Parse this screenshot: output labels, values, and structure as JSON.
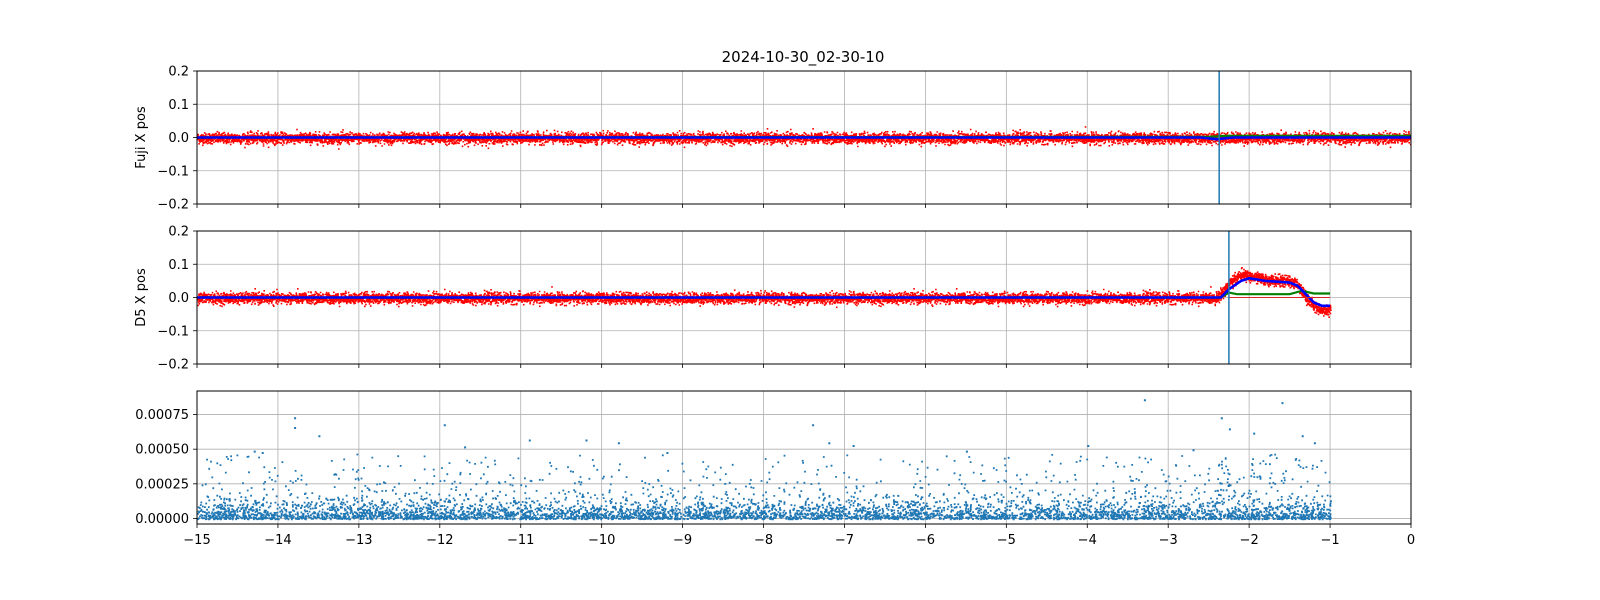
{
  "figure": {
    "title": "2024-10-30_02-30-10"
  },
  "colors": {
    "raw": "#ff0000",
    "smooth": "#0000ff",
    "baseline": "#008000",
    "marker": "#1f77b4",
    "scatter": "#1f77b4",
    "grid": "#b0b0b0"
  },
  "chart_data": [
    {
      "type": "scatter",
      "ylabel": "Fuji X pos",
      "xlim": [
        -15,
        0
      ],
      "ylim": [
        -0.2,
        0.2
      ],
      "yticks": [
        "0.2",
        "0.1",
        "0.0",
        "−0.1",
        "−0.2"
      ],
      "ytick_values": [
        0.2,
        0.1,
        0.0,
        -0.1,
        -0.2
      ],
      "grid": true,
      "raw": {
        "x_range": [
          -15,
          0
        ],
        "mean": 0.0,
        "noise": 0.008
      },
      "smooth": {
        "x": [
          -15,
          -2.6,
          -2.4,
          -2.2,
          0
        ],
        "y": [
          0.0,
          0.0,
          -0.005,
          0.0,
          0.0
        ]
      },
      "baseline": {
        "x": [
          -15,
          -2.5,
          -2.3,
          0
        ],
        "y": [
          0.0,
          0.002,
          0.005,
          0.005
        ]
      },
      "vline": -2.37
    },
    {
      "type": "scatter",
      "ylabel": "D5 X pos",
      "xlim": [
        -15,
        0
      ],
      "ylim": [
        -0.2,
        0.2
      ],
      "yticks": [
        "0.2",
        "0.1",
        "0.0",
        "−0.1",
        "−0.2"
      ],
      "ytick_values": [
        0.2,
        0.1,
        0.0,
        -0.1,
        -0.2
      ],
      "grid": true,
      "raw": {
        "x": [
          -15,
          -2.4,
          -2.25,
          -2.1,
          -2.0,
          -1.8,
          -1.5,
          -1.4,
          -1.3,
          -1.2,
          -1.1,
          -1.0
        ],
        "y": [
          0.0,
          0.0,
          0.045,
          0.07,
          0.065,
          0.055,
          0.05,
          0.04,
          0.0,
          -0.025,
          -0.035,
          -0.035
        ],
        "noise": 0.008
      },
      "smooth": {
        "x": [
          -15,
          -2.35,
          -2.25,
          -2.1,
          -2.0,
          -1.8,
          -1.5,
          -1.4,
          -1.3,
          -1.2,
          -1.1,
          -1.0
        ],
        "y": [
          0.0,
          0.0,
          0.025,
          0.05,
          0.058,
          0.05,
          0.045,
          0.035,
          0.01,
          -0.015,
          -0.025,
          -0.025
        ]
      },
      "baseline": {
        "x": [
          -15,
          -2.35,
          -2.25,
          -2.15,
          -1.5,
          -1.35,
          -1.2,
          -1.0
        ],
        "y": [
          0.0,
          0.0,
          0.015,
          0.01,
          0.01,
          0.02,
          0.012,
          0.012
        ]
      },
      "hline": {
        "x": [
          -2.25,
          -1.0
        ],
        "y": 0.0
      },
      "vline": -2.25
    },
    {
      "type": "scatter",
      "ylabel": "",
      "xlim": [
        -15,
        0
      ],
      "ylim": [
        -4e-05,
        0.00092
      ],
      "yticks": [
        "0.00075",
        "0.00050",
        "0.00025",
        "0.00000"
      ],
      "ytick_values": [
        0.00075,
        0.0005,
        0.00025,
        0.0
      ],
      "xticks": [
        "−15",
        "−14",
        "−13",
        "−12",
        "−11",
        "−10",
        "−9",
        "−8",
        "−7",
        "−6",
        "−5",
        "−4",
        "−3",
        "−2",
        "−1",
        "0"
      ],
      "xtick_values": [
        -15,
        -14,
        -13,
        -12,
        -11,
        -10,
        -9,
        -8,
        -7,
        -6,
        -5,
        -4,
        -3,
        -2,
        -1,
        0
      ],
      "grid": true,
      "x_range": [
        -15,
        -1
      ],
      "typical_max": 0.00025,
      "outliers": [
        [
          -13.8,
          0.00073
        ],
        [
          -13.8,
          0.00066
        ],
        [
          -13.5,
          0.0006
        ],
        [
          -11.95,
          0.00068
        ],
        [
          -11.7,
          0.00052
        ],
        [
          -10.9,
          0.00057
        ],
        [
          -10.2,
          0.00057
        ],
        [
          -9.8,
          0.00055
        ],
        [
          -7.4,
          0.00068
        ],
        [
          -7.2,
          0.00055
        ],
        [
          -6.9,
          0.00053
        ],
        [
          -4.0,
          0.00053
        ],
        [
          -3.3,
          0.00086
        ],
        [
          -2.35,
          0.00073
        ],
        [
          -2.25,
          0.00065
        ],
        [
          -1.95,
          0.00062
        ],
        [
          -1.6,
          0.00084
        ],
        [
          -1.35,
          0.0006
        ],
        [
          -1.2,
          0.00055
        ],
        [
          -14.3,
          0.00049
        ],
        [
          -14.2,
          0.00048
        ],
        [
          -9.2,
          0.00048
        ],
        [
          -5.5,
          0.00049
        ],
        [
          -2.7,
          0.0005
        ]
      ],
      "burst": {
        "x": [
          -2.4,
          -2.25
        ],
        "max": 0.00045
      }
    }
  ]
}
